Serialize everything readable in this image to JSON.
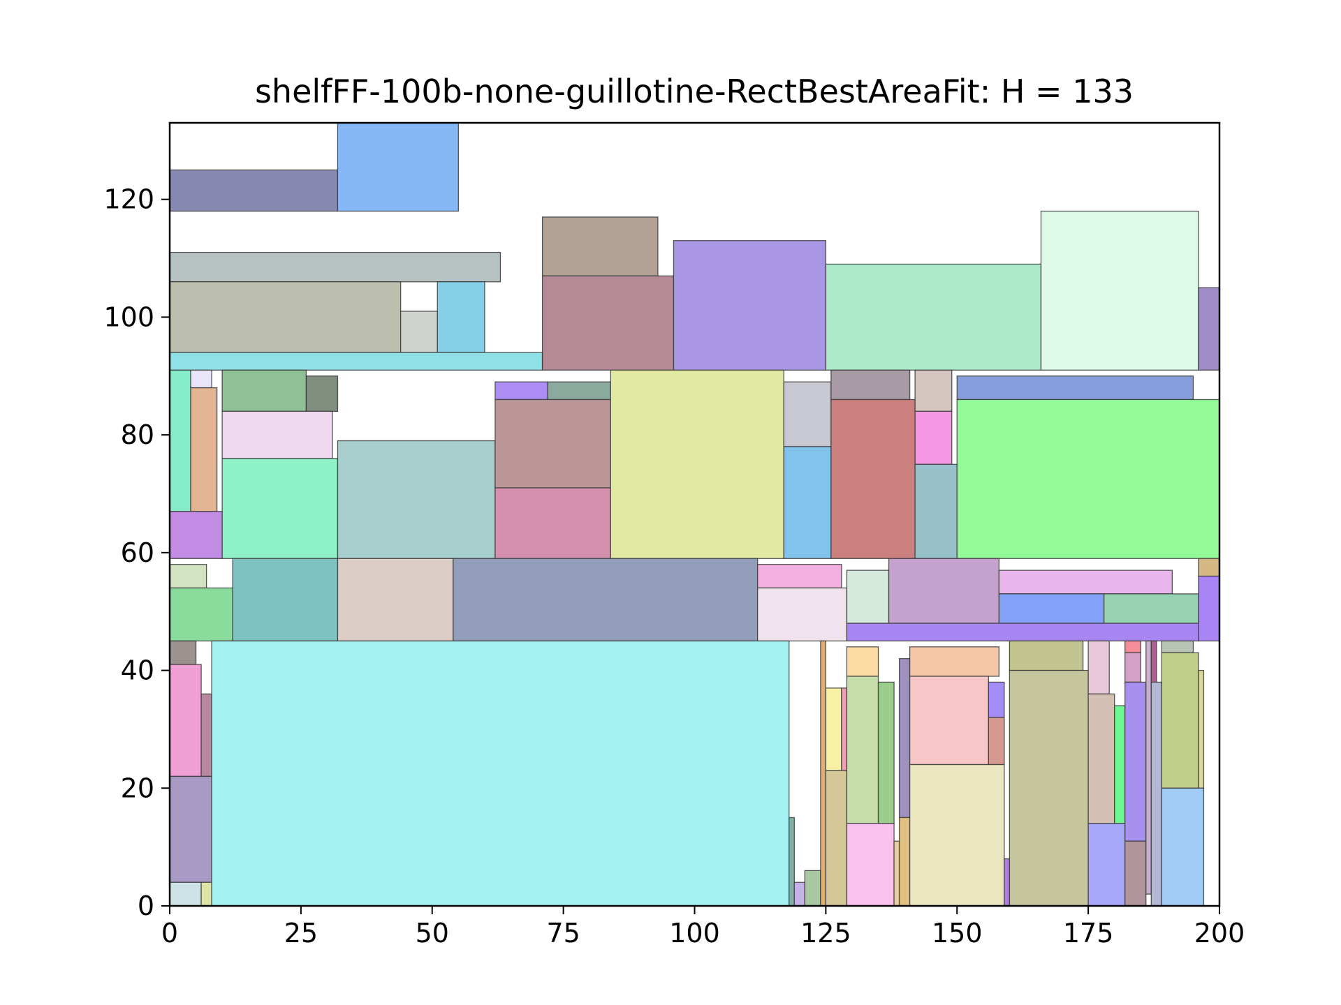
{
  "chart_data": {
    "type": "rectangle-packing",
    "title": "shelfFF-100b-none-guillotine-RectBestAreaFit: H = 133",
    "xlim": [
      0,
      200
    ],
    "ylim": [
      0,
      133
    ],
    "x_ticks": [
      0,
      25,
      50,
      75,
      100,
      125,
      150,
      175,
      200
    ],
    "y_ticks": [
      0,
      20,
      40,
      60,
      80,
      100,
      120
    ],
    "grid": false,
    "rects": [
      {
        "x": 0,
        "y": 118,
        "w": 32,
        "h": 7,
        "color": "#8789b1"
      },
      {
        "x": 32,
        "y": 118,
        "w": 23,
        "h": 15,
        "color": "#86b8f8"
      },
      {
        "x": 0,
        "y": 106,
        "w": 63,
        "h": 5,
        "color": "#b7c3c3"
      },
      {
        "x": 0,
        "y": 94,
        "w": 44,
        "h": 12,
        "color": "#bcbeae"
      },
      {
        "x": 44,
        "y": 94,
        "w": 7,
        "h": 7,
        "color": "#d0d2d0"
      },
      {
        "x": 51,
        "y": 94,
        "w": 9,
        "h": 12,
        "color": "#85cfe9"
      },
      {
        "x": 0,
        "y": 91,
        "w": 71,
        "h": 3,
        "color": "#90e0e7"
      },
      {
        "x": 71,
        "y": 107,
        "w": 22,
        "h": 10,
        "color": "#b3a196"
      },
      {
        "x": 71,
        "y": 91,
        "w": 25,
        "h": 16,
        "color": "#b58a96"
      },
      {
        "x": 96,
        "y": 91,
        "w": 29,
        "h": 22,
        "color": "#a997e6"
      },
      {
        "x": 125,
        "y": 91,
        "w": 41,
        "h": 18,
        "color": "#acebca"
      },
      {
        "x": 166,
        "y": 91,
        "w": 30,
        "h": 27,
        "color": "#ddfae9"
      },
      {
        "x": 196,
        "y": 91,
        "w": 4,
        "h": 14,
        "color": "#a08bc8"
      },
      {
        "x": 0,
        "y": 67,
        "w": 4,
        "h": 24,
        "color": "#86ebc9"
      },
      {
        "x": 4,
        "y": 88,
        "w": 4,
        "h": 3,
        "color": "#e8e4fa"
      },
      {
        "x": 4,
        "y": 67,
        "w": 5,
        "h": 21,
        "color": "#e4b593"
      },
      {
        "x": 0,
        "y": 59,
        "w": 10,
        "h": 8,
        "color": "#c28ce4"
      },
      {
        "x": 10,
        "y": 84,
        "w": 16,
        "h": 7,
        "color": "#90c096"
      },
      {
        "x": 26,
        "y": 84,
        "w": 6,
        "h": 6,
        "color": "#808f80"
      },
      {
        "x": 10,
        "y": 76,
        "w": 21,
        "h": 8,
        "color": "#efd8ef"
      },
      {
        "x": 10,
        "y": 59,
        "w": 22,
        "h": 17,
        "color": "#8ff1c8"
      },
      {
        "x": 32,
        "y": 59,
        "w": 30,
        "h": 20,
        "color": "#a8cfcd"
      },
      {
        "x": 62,
        "y": 86,
        "w": 10,
        "h": 3,
        "color": "#ad8ef5"
      },
      {
        "x": 72,
        "y": 86,
        "w": 12,
        "h": 3,
        "color": "#8aaa9e"
      },
      {
        "x": 62,
        "y": 71,
        "w": 22,
        "h": 15,
        "color": "#bc9799"
      },
      {
        "x": 62,
        "y": 59,
        "w": 22,
        "h": 12,
        "color": "#d590ae"
      },
      {
        "x": 84,
        "y": 59,
        "w": 33,
        "h": 32,
        "color": "#e2e9a3"
      },
      {
        "x": 117,
        "y": 78,
        "w": 9,
        "h": 11,
        "color": "#c8c8d3"
      },
      {
        "x": 117,
        "y": 59,
        "w": 9,
        "h": 19,
        "color": "#82c3ec"
      },
      {
        "x": 126,
        "y": 86,
        "w": 15,
        "h": 5,
        "color": "#a99ba6"
      },
      {
        "x": 126,
        "y": 59,
        "w": 16,
        "h": 27,
        "color": "#cc7f7f"
      },
      {
        "x": 142,
        "y": 84,
        "w": 7,
        "h": 7,
        "color": "#d5c5c0"
      },
      {
        "x": 142,
        "y": 75,
        "w": 7,
        "h": 9,
        "color": "#f597e2"
      },
      {
        "x": 142,
        "y": 59,
        "w": 8,
        "h": 16,
        "color": "#98c0ca"
      },
      {
        "x": 150,
        "y": 86,
        "w": 45,
        "h": 4,
        "color": "#869fdc"
      },
      {
        "x": 150,
        "y": 59,
        "w": 50,
        "h": 27,
        "color": "#92fb98"
      },
      {
        "x": 0,
        "y": 54,
        "w": 7,
        "h": 4,
        "color": "#d2e3c2"
      },
      {
        "x": 0,
        "y": 45,
        "w": 12,
        "h": 9,
        "color": "#89dc9c"
      },
      {
        "x": 12,
        "y": 45,
        "w": 20,
        "h": 14,
        "color": "#7fc2c2"
      },
      {
        "x": 32,
        "y": 45,
        "w": 22,
        "h": 14,
        "color": "#dccdc7"
      },
      {
        "x": 54,
        "y": 45,
        "w": 58,
        "h": 14,
        "color": "#929db9"
      },
      {
        "x": 112,
        "y": 54,
        "w": 16,
        "h": 4,
        "color": "#f3afdf"
      },
      {
        "x": 112,
        "y": 45,
        "w": 17,
        "h": 9,
        "color": "#f1e3ed"
      },
      {
        "x": 129,
        "y": 48,
        "w": 8,
        "h": 9,
        "color": "#d5e9dd"
      },
      {
        "x": 137,
        "y": 48,
        "w": 21,
        "h": 11,
        "color": "#c5a1cd"
      },
      {
        "x": 158,
        "y": 53,
        "w": 33,
        "h": 4,
        "color": "#e9b5ed"
      },
      {
        "x": 158,
        "y": 48,
        "w": 20,
        "h": 5,
        "color": "#83a2f8"
      },
      {
        "x": 178,
        "y": 48,
        "w": 18,
        "h": 5,
        "color": "#97d3b3"
      },
      {
        "x": 129,
        "y": 45,
        "w": 67,
        "h": 3,
        "color": "#a886f2"
      },
      {
        "x": 196,
        "y": 56,
        "w": 4,
        "h": 3,
        "color": "#d5b784"
      },
      {
        "x": 196,
        "y": 45,
        "w": 4,
        "h": 11,
        "color": "#a884f5"
      },
      {
        "x": 0,
        "y": 41,
        "w": 5,
        "h": 4,
        "color": "#9d9290"
      },
      {
        "x": 0,
        "y": 22,
        "w": 6,
        "h": 19,
        "color": "#f0a0d5"
      },
      {
        "x": 6,
        "y": 22,
        "w": 2,
        "h": 14,
        "color": "#b887a0"
      },
      {
        "x": 0,
        "y": 4,
        "w": 8,
        "h": 18,
        "color": "#a999c5"
      },
      {
        "x": 0,
        "y": 0,
        "w": 6,
        "h": 4,
        "color": "#cde2e7"
      },
      {
        "x": 6,
        "y": 0,
        "w": 2,
        "h": 4,
        "color": "#dde4a5"
      },
      {
        "x": 8,
        "y": 0,
        "w": 110,
        "h": 45,
        "color": "#a5f2f2"
      },
      {
        "x": 118,
        "y": 0,
        "w": 1,
        "h": 15,
        "color": "#7fb3a8"
      },
      {
        "x": 119,
        "y": 0,
        "w": 2,
        "h": 4,
        "color": "#c8b0e8"
      },
      {
        "x": 121,
        "y": 0,
        "w": 3,
        "h": 6,
        "color": "#a8c8a0"
      },
      {
        "x": 124,
        "y": 0,
        "w": 1,
        "h": 45,
        "color": "#e0b070"
      },
      {
        "x": 125,
        "y": 23,
        "w": 3,
        "h": 14,
        "color": "#f7f0a5"
      },
      {
        "x": 128,
        "y": 23,
        "w": 1,
        "h": 14,
        "color": "#f0a0b0"
      },
      {
        "x": 125,
        "y": 0,
        "w": 4,
        "h": 23,
        "color": "#d6c896"
      },
      {
        "x": 129,
        "y": 39,
        "w": 6,
        "h": 5,
        "color": "#fcdba5"
      },
      {
        "x": 129,
        "y": 14,
        "w": 6,
        "h": 25,
        "color": "#c8deaa"
      },
      {
        "x": 135,
        "y": 14,
        "w": 3,
        "h": 24,
        "color": "#9ccd8c"
      },
      {
        "x": 129,
        "y": 0,
        "w": 9,
        "h": 14,
        "color": "#fbc2f0"
      },
      {
        "x": 138,
        "y": 0,
        "w": 1,
        "h": 11,
        "color": "#e8d0a0"
      },
      {
        "x": 139,
        "y": 15,
        "w": 2,
        "h": 27,
        "color": "#a090c0"
      },
      {
        "x": 139,
        "y": 0,
        "w": 2,
        "h": 15,
        "color": "#e0c080"
      },
      {
        "x": 141,
        "y": 39,
        "w": 17,
        "h": 5,
        "color": "#f5c6a6"
      },
      {
        "x": 141,
        "y": 24,
        "w": 15,
        "h": 15,
        "color": "#f7c6c6"
      },
      {
        "x": 156,
        "y": 32,
        "w": 3,
        "h": 6,
        "color": "#a48cf7"
      },
      {
        "x": 156,
        "y": 24,
        "w": 3,
        "h": 8,
        "color": "#d49a92"
      },
      {
        "x": 141,
        "y": 0,
        "w": 18,
        "h": 24,
        "color": "#e9e6c0"
      },
      {
        "x": 159,
        "y": 0,
        "w": 1,
        "h": 8,
        "color": "#b080e0"
      },
      {
        "x": 160,
        "y": 40,
        "w": 14,
        "h": 5,
        "color": "#c2c58f"
      },
      {
        "x": 160,
        "y": 0,
        "w": 15,
        "h": 40,
        "color": "#c5c59e"
      },
      {
        "x": 175,
        "y": 36,
        "w": 4,
        "h": 9,
        "color": "#e9c8d9"
      },
      {
        "x": 175,
        "y": 14,
        "w": 5,
        "h": 22,
        "color": "#d5c0b6"
      },
      {
        "x": 180,
        "y": 14,
        "w": 2,
        "h": 20,
        "color": "#6ef790"
      },
      {
        "x": 175,
        "y": 0,
        "w": 7,
        "h": 14,
        "color": "#a8a8fa"
      },
      {
        "x": 182,
        "y": 43,
        "w": 3,
        "h": 2,
        "color": "#f58c9a"
      },
      {
        "x": 182,
        "y": 38,
        "w": 3,
        "h": 5,
        "color": "#d2a0c8"
      },
      {
        "x": 182,
        "y": 11,
        "w": 4,
        "h": 27,
        "color": "#a890f0"
      },
      {
        "x": 182,
        "y": 0,
        "w": 4,
        "h": 11,
        "color": "#b0939b"
      },
      {
        "x": 186,
        "y": 2,
        "w": 1,
        "h": 43,
        "color": "#c7b0d0"
      },
      {
        "x": 187,
        "y": 37,
        "w": 1,
        "h": 8,
        "color": "#b06090"
      },
      {
        "x": 187,
        "y": 0,
        "w": 2,
        "h": 38,
        "color": "#b3b9d4"
      },
      {
        "x": 189,
        "y": 43,
        "w": 6,
        "h": 2,
        "color": "#b8c4b6"
      },
      {
        "x": 189,
        "y": 20,
        "w": 7,
        "h": 23,
        "color": "#c0ce8c"
      },
      {
        "x": 196,
        "y": 20,
        "w": 1,
        "h": 20,
        "color": "#d9d99a"
      },
      {
        "x": 189,
        "y": 0,
        "w": 8,
        "h": 20,
        "color": "#a0ccf5"
      }
    ]
  }
}
